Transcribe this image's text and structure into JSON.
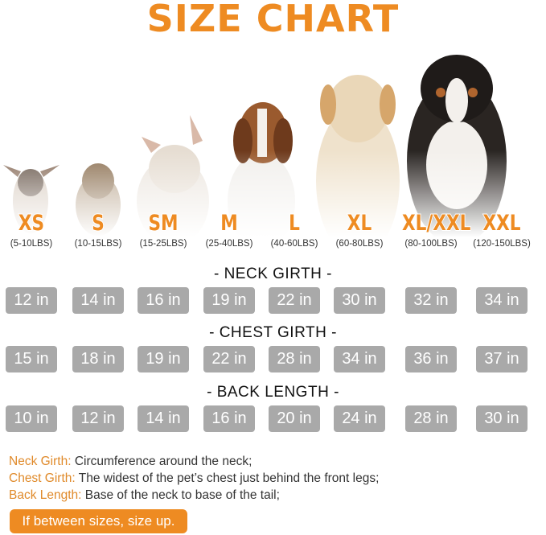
{
  "title": "SIZE CHART",
  "colors": {
    "accent": "#ee8b22",
    "box": "#a9a9a9"
  },
  "sizes": [
    {
      "label": "XS",
      "weight": "(5-10LBS)",
      "neck": "12 in",
      "chest": "15 in",
      "back": "10 in"
    },
    {
      "label": "S",
      "weight": "(10-15LBS)",
      "neck": "14 in",
      "chest": "18 in",
      "back": "12 in"
    },
    {
      "label": "SM",
      "weight": "(15-25LBS)",
      "neck": "16 in",
      "chest": "19 in",
      "back": "14 in"
    },
    {
      "label": "M",
      "weight": "(25-40LBS)",
      "neck": "19 in",
      "chest": "22 in",
      "back": "16 in"
    },
    {
      "label": "L",
      "weight": "(40-60LBS)",
      "neck": "22 in",
      "chest": "28 in",
      "back": "20 in"
    },
    {
      "label": "XL",
      "weight": "(60-80LBS)",
      "neck": "30 in",
      "chest": "34 in",
      "back": "24 in"
    },
    {
      "label": "XL/XXL",
      "weight": "(80-100LBS)",
      "neck": "32 in",
      "chest": "36 in",
      "back": "28 in"
    },
    {
      "label": "XXL",
      "weight": "(120-150LBS)",
      "neck": "34 in",
      "chest": "37 in",
      "back": "30 in"
    }
  ],
  "headings": {
    "neck": "- NECK GIRTH -",
    "chest": "- CHEST GIRTH -",
    "back": "- BACK LENGTH -"
  },
  "legend": [
    {
      "key": "Neck Girth:",
      "text": " Circumference around the neck;"
    },
    {
      "key": "Chest Girth:",
      "text": " The widest of the pet’s chest just behind the front legs;"
    },
    {
      "key": "Back Length:",
      "text": " Base of the neck to base of the tail;"
    }
  ],
  "tip": "If between sizes, size up."
}
